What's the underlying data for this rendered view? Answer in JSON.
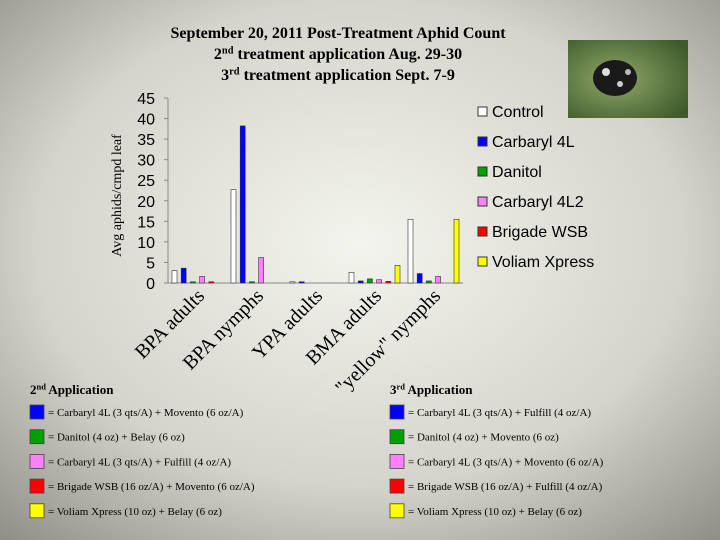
{
  "chart_data": {
    "type": "bar",
    "title": [
      "September 20, 2011 Post-Treatment Aphid Count",
      {
        "base": "2",
        "sup": "nd",
        "rest": " treatment application Aug. 29-30"
      },
      {
        "base": "3",
        "sup": "rd",
        "rest": " treatment application Sept. 7-9"
      }
    ],
    "y_label": "Avg aphids/cmpd leaf",
    "categories": [
      "BPA adults",
      "BPA nymphs",
      "YPA adults",
      "BMA adults",
      "\"yellow\" nymphs"
    ],
    "series": [
      {
        "name": "Control",
        "color": "#ffffff",
        "values": [
          3,
          22.7,
          0.3,
          2.6,
          15.5
        ]
      },
      {
        "name": "Carbaryl 4L",
        "color": "#0000ff",
        "values": [
          3.6,
          38.2,
          0.3,
          0.5,
          2.3
        ]
      },
      {
        "name": "Danitol",
        "color": "#00a000",
        "values": [
          0.3,
          0.3,
          0,
          1,
          0.5
        ]
      },
      {
        "name": "Carbaryl 4L2",
        "color": "#ff80ff",
        "values": [
          1.6,
          6.2,
          0,
          0.8,
          1.6
        ]
      },
      {
        "name": "Brigade WSB",
        "color": "#ff0000",
        "values": [
          0.3,
          0,
          0,
          0.4,
          0
        ]
      },
      {
        "name": "Voliam Xpress",
        "color": "#ffff00",
        "values": [
          0,
          0,
          0,
          4.3,
          15.5
        ]
      }
    ],
    "ylim": [
      0,
      45
    ],
    "yticks": [
      0,
      5,
      10,
      15,
      20,
      25,
      30,
      35,
      40,
      45
    ]
  },
  "applications": [
    {
      "heading": {
        "base": "2",
        "sup": "nd",
        "rest": " Application"
      },
      "items": [
        {
          "color": "#0000ff",
          "text": "= Carbaryl 4L (3 qts/A) + Movento (6 oz/A)"
        },
        {
          "color": "#00a000",
          "text": "= Danitol (4 oz) + Belay (6 oz)"
        },
        {
          "color": "#ff80ff",
          "text": "= Carbaryl 4L (3 qts/A) + Fulfill (4 oz/A)"
        },
        {
          "color": "#ff0000",
          "text": "= Brigade WSB (16 oz/A) + Movento (6 oz/A)"
        },
        {
          "color": "#ffff00",
          "text": "= Voliam Xpress (10 oz) + Belay (6 oz)"
        }
      ]
    },
    {
      "heading": {
        "base": "3",
        "sup": "rd",
        "rest": " Application"
      },
      "items": [
        {
          "color": "#0000ff",
          "text": "= Carbaryl 4L (3 qts/A) + Fulfill (4 oz/A)"
        },
        {
          "color": "#00a000",
          "text": "= Danitol (4 oz) + Movento (6 oz)"
        },
        {
          "color": "#ff80ff",
          "text": "= Carbaryl 4L (3 qts/A) + Movento (6 oz/A)"
        },
        {
          "color": "#ff0000",
          "text": "= Brigade WSB (16 oz/A) + Fulfill (4 oz/A)"
        },
        {
          "color": "#ffff00",
          "text": "= Voliam Xpress (10 oz) + Belay (6 oz)"
        }
      ]
    }
  ]
}
